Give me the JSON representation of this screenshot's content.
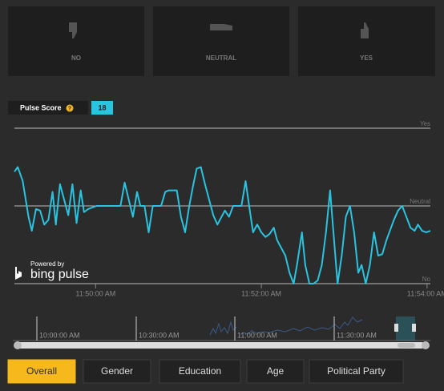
{
  "vote_buttons": [
    "NO",
    "NEUTRAL",
    "YES"
  ],
  "pulse_score": {
    "label": "Pulse Score",
    "help": "?",
    "value": "18"
  },
  "branding": {
    "powered_by": "Powered by",
    "name": "bing pulse"
  },
  "chart_data": {
    "type": "line",
    "color": "#29c4e0",
    "x": [
      49.02,
      49.06,
      49.12,
      49.19,
      49.23,
      49.28,
      49.33,
      49.38,
      49.43,
      49.48,
      49.52,
      49.57,
      49.62,
      49.67,
      49.72,
      49.77,
      49.82,
      49.86,
      49.91,
      50.01,
      50.3,
      50.35,
      50.4,
      50.45,
      50.5,
      50.54,
      50.59,
      50.64,
      50.69,
      50.79,
      50.84,
      50.88,
      50.98,
      51.03,
      51.08,
      51.13,
      51.18,
      51.22,
      51.27,
      51.32,
      51.37,
      51.42,
      51.47,
      51.52,
      51.56,
      51.61,
      51.66,
      51.76,
      51.81,
      51.85,
      51.9,
      51.95,
      52.0,
      52.05,
      52.1,
      52.15,
      52.19,
      52.24,
      52.29,
      52.34,
      52.39,
      52.43,
      52.49,
      52.53,
      52.58,
      52.63,
      52.68,
      52.73,
      52.78,
      52.83,
      52.87,
      52.92,
      52.97,
      53.02,
      53.07,
      53.12,
      53.17,
      53.21,
      53.26,
      53.31,
      53.36,
      53.41,
      53.46,
      53.51,
      53.6,
      53.65,
      53.7,
      53.75,
      53.8,
      53.85,
      53.89,
      53.94,
      53.99,
      54.04
    ],
    "values": [
      72,
      75,
      66,
      43,
      34,
      48,
      47,
      38,
      41,
      59,
      38,
      64,
      54,
      44,
      64,
      39,
      60,
      46,
      48,
      50,
      50,
      65,
      54,
      43,
      59,
      50,
      50,
      33,
      50,
      50,
      59,
      60,
      60,
      43,
      33,
      50,
      64,
      74,
      75,
      64,
      54,
      44,
      38,
      43,
      47,
      43,
      50,
      50,
      66,
      51,
      33,
      38,
      33,
      30,
      32,
      36,
      28,
      23,
      18,
      7,
      0,
      12,
      33,
      12,
      0,
      0,
      2,
      12,
      33,
      60,
      33,
      0,
      18,
      43,
      50,
      33,
      7,
      12,
      0,
      12,
      33,
      18,
      19,
      28,
      41,
      47,
      50,
      43,
      36,
      34,
      38,
      34,
      33,
      34
    ],
    "xlim": [
      49.02,
      54.04
    ],
    "ylim": [
      0,
      100
    ],
    "xticks": [
      {
        "value": 50,
        "label": "11:50:00 AM"
      },
      {
        "value": 52,
        "label": "11:52:00 AM"
      },
      {
        "value": 54,
        "label": "11:54:00 AM"
      }
    ],
    "yticks": [
      {
        "value": 100,
        "label": "Yes"
      },
      {
        "value": 50,
        "label": "Neutral"
      },
      {
        "value": 0,
        "label": "No"
      }
    ],
    "grid": true
  },
  "navigator": {
    "labels": [
      "10:00:00 AM",
      "10:30:00 AM",
      "11:00:00 AM",
      "11:30:00 AM"
    ]
  },
  "tabs": [
    "Overall",
    "Gender",
    "Education",
    "Age",
    "Political Party"
  ]
}
